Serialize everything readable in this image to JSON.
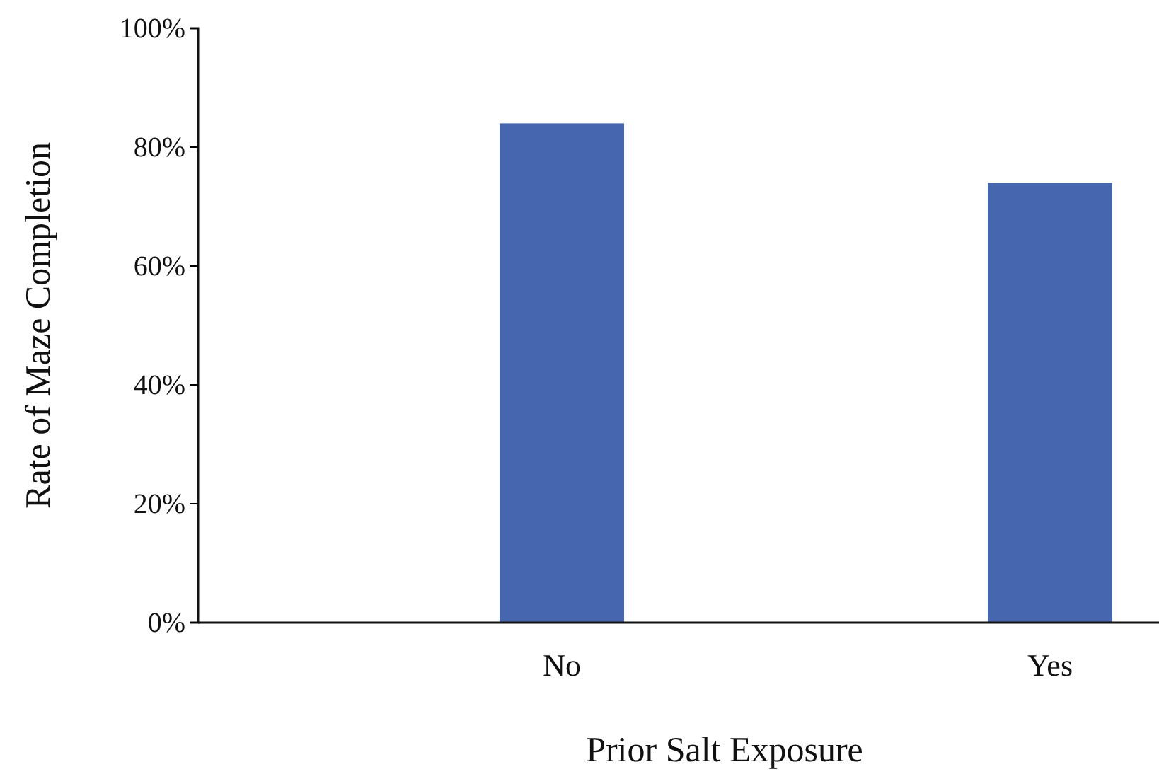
{
  "chart_data": {
    "type": "bar",
    "xlabel": "Prior Salt Exposure",
    "ylabel": "Rate of Maze Completion",
    "categories": [
      "No",
      "Yes"
    ],
    "values": [
      84,
      74
    ],
    "color": "#4766b0",
    "ylim": [
      0,
      100
    ],
    "yticks": [
      {
        "value": 0,
        "label": "0%"
      },
      {
        "value": 20,
        "label": "20%"
      },
      {
        "value": 40,
        "label": "40%"
      },
      {
        "value": 60,
        "label": "60%"
      },
      {
        "value": 80,
        "label": "80%"
      },
      {
        "value": 100,
        "label": "100%"
      }
    ],
    "grid": false
  }
}
